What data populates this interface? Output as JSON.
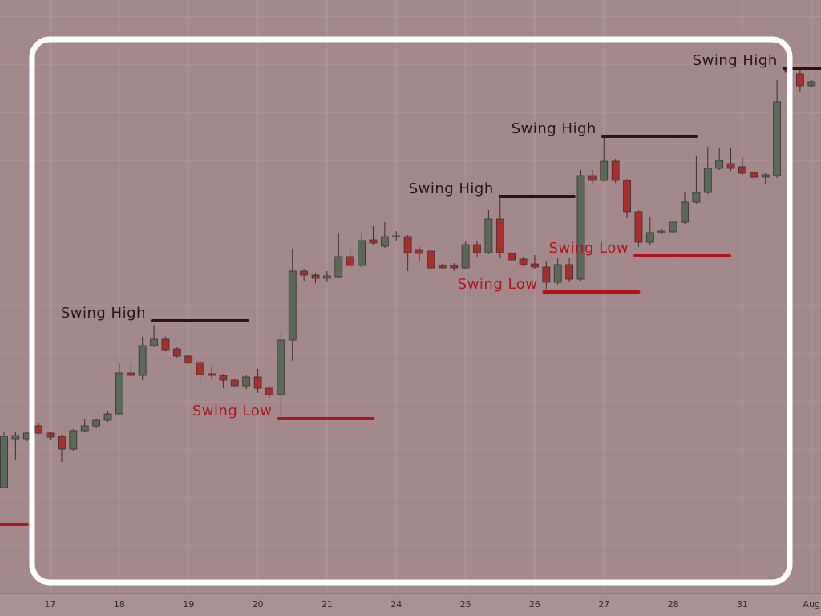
{
  "chart_data": {
    "type": "candlestick",
    "categories": [
      null,
      null,
      null,
      null,
      "17",
      null,
      null,
      null,
      null,
      null,
      "18",
      null,
      null,
      null,
      null,
      null,
      "19",
      null,
      null,
      null,
      null,
      null,
      "20",
      null,
      null,
      null,
      null,
      null,
      "21",
      null,
      null,
      null,
      null,
      null,
      "24",
      null,
      null,
      null,
      null,
      null,
      "25",
      null,
      null,
      null,
      null,
      null,
      "26",
      null,
      null,
      null,
      null,
      null,
      "27",
      null,
      null,
      null,
      null,
      null,
      "28",
      null,
      null,
      null,
      null,
      null,
      "31",
      null,
      null,
      null,
      null,
      null,
      "Aug"
    ],
    "open": [
      132,
      193,
      193,
      209,
      200,
      196,
      180,
      203,
      209,
      216,
      224,
      275,
      272,
      309,
      317,
      305,
      296,
      288,
      274,
      272,
      266,
      259,
      270,
      256,
      248,
      316,
      402,
      397,
      393,
      395,
      420,
      409,
      441,
      433,
      445,
      445,
      428,
      427,
      409,
      409,
      406,
      435,
      425,
      467,
      424,
      417,
      411,
      407,
      388,
      410,
      392,
      521,
      515,
      539,
      515,
      476,
      438,
      450,
      451,
      463,
      488,
      500,
      530,
      536,
      532,
      525,
      519,
      521,
      655,
      648,
      633
    ],
    "high": [
      202,
      202,
      202,
      212,
      202,
      198,
      205,
      217,
      218,
      227,
      288,
      288,
      320,
      335,
      320,
      307,
      298,
      290,
      282,
      274,
      268,
      272,
      280,
      258,
      326,
      430,
      405,
      400,
      402,
      450,
      430,
      450,
      458,
      463,
      452,
      447,
      432,
      429,
      411,
      412,
      440,
      440,
      478,
      494,
      426,
      419,
      422,
      415,
      418,
      418,
      528,
      528,
      570,
      542,
      517,
      478,
      470,
      454,
      465,
      500,
      545,
      557,
      555,
      555,
      544,
      527,
      524,
      640,
      660,
      655,
      640
    ],
    "low": [
      132,
      167,
      190,
      198,
      192,
      164,
      178,
      201,
      207,
      214,
      222,
      270,
      266,
      307,
      302,
      294,
      286,
      262,
      268,
      256,
      257,
      255,
      250,
      244,
      220,
      290,
      390,
      387,
      388,
      393,
      407,
      407,
      435,
      431,
      440,
      402,
      415,
      395,
      404,
      402,
      404,
      420,
      423,
      418,
      414,
      408,
      405,
      380,
      385,
      388,
      390,
      510,
      514,
      512,
      468,
      432,
      434,
      448,
      448,
      461,
      486,
      498,
      528,
      527,
      522,
      515,
      510,
      518,
      640,
      625,
      631
    ],
    "close": [
      196,
      197,
      200,
      200,
      195,
      180,
      203,
      209,
      216,
      224,
      275,
      272,
      309,
      317,
      304,
      296,
      288,
      273,
      272,
      266,
      259,
      270,
      256,
      248,
      316,
      402,
      397,
      393,
      396,
      420,
      409,
      440,
      437,
      445,
      446,
      425,
      424,
      406,
      406,
      406,
      435,
      425,
      467,
      425,
      416,
      410,
      407,
      388,
      410,
      392,
      521,
      515,
      539,
      515,
      476,
      438,
      450,
      452,
      463,
      488,
      500,
      530,
      540,
      530,
      524,
      519,
      522,
      613,
      650,
      633,
      638
    ],
    "up_color": "#5b6a58",
    "down_color": "#a8302c",
    "ylim": [
      0,
      740
    ],
    "grid": true,
    "annotations": [
      {
        "label": "Swing High",
        "value": 340,
        "start": 12.85,
        "end": 21.1,
        "color": "#2a1414"
      },
      {
        "label": "Swing Low",
        "value": 218,
        "start": 23.8,
        "end": 32,
        "color": "#b0141a"
      },
      {
        "label": "Swing High",
        "value": 495,
        "start": 43,
        "end": 49.4,
        "color": "#2a1414"
      },
      {
        "label": "Swing Low",
        "value": 376,
        "start": 46.8,
        "end": 55,
        "color": "#b0141a"
      },
      {
        "label": "Swing High",
        "value": 570,
        "start": 51.9,
        "end": 60,
        "color": "#2a1414"
      },
      {
        "label": "Swing Low",
        "value": 421,
        "start": 54.7,
        "end": 62.9,
        "color": "#b0141a"
      },
      {
        "label": "Swing High",
        "value": 655,
        "start": 67.6,
        "end": 70.8,
        "color": "#2a1414"
      },
      {
        "value": 86,
        "start": -0.35,
        "end": 2,
        "color": "#b0141a"
      }
    ]
  }
}
